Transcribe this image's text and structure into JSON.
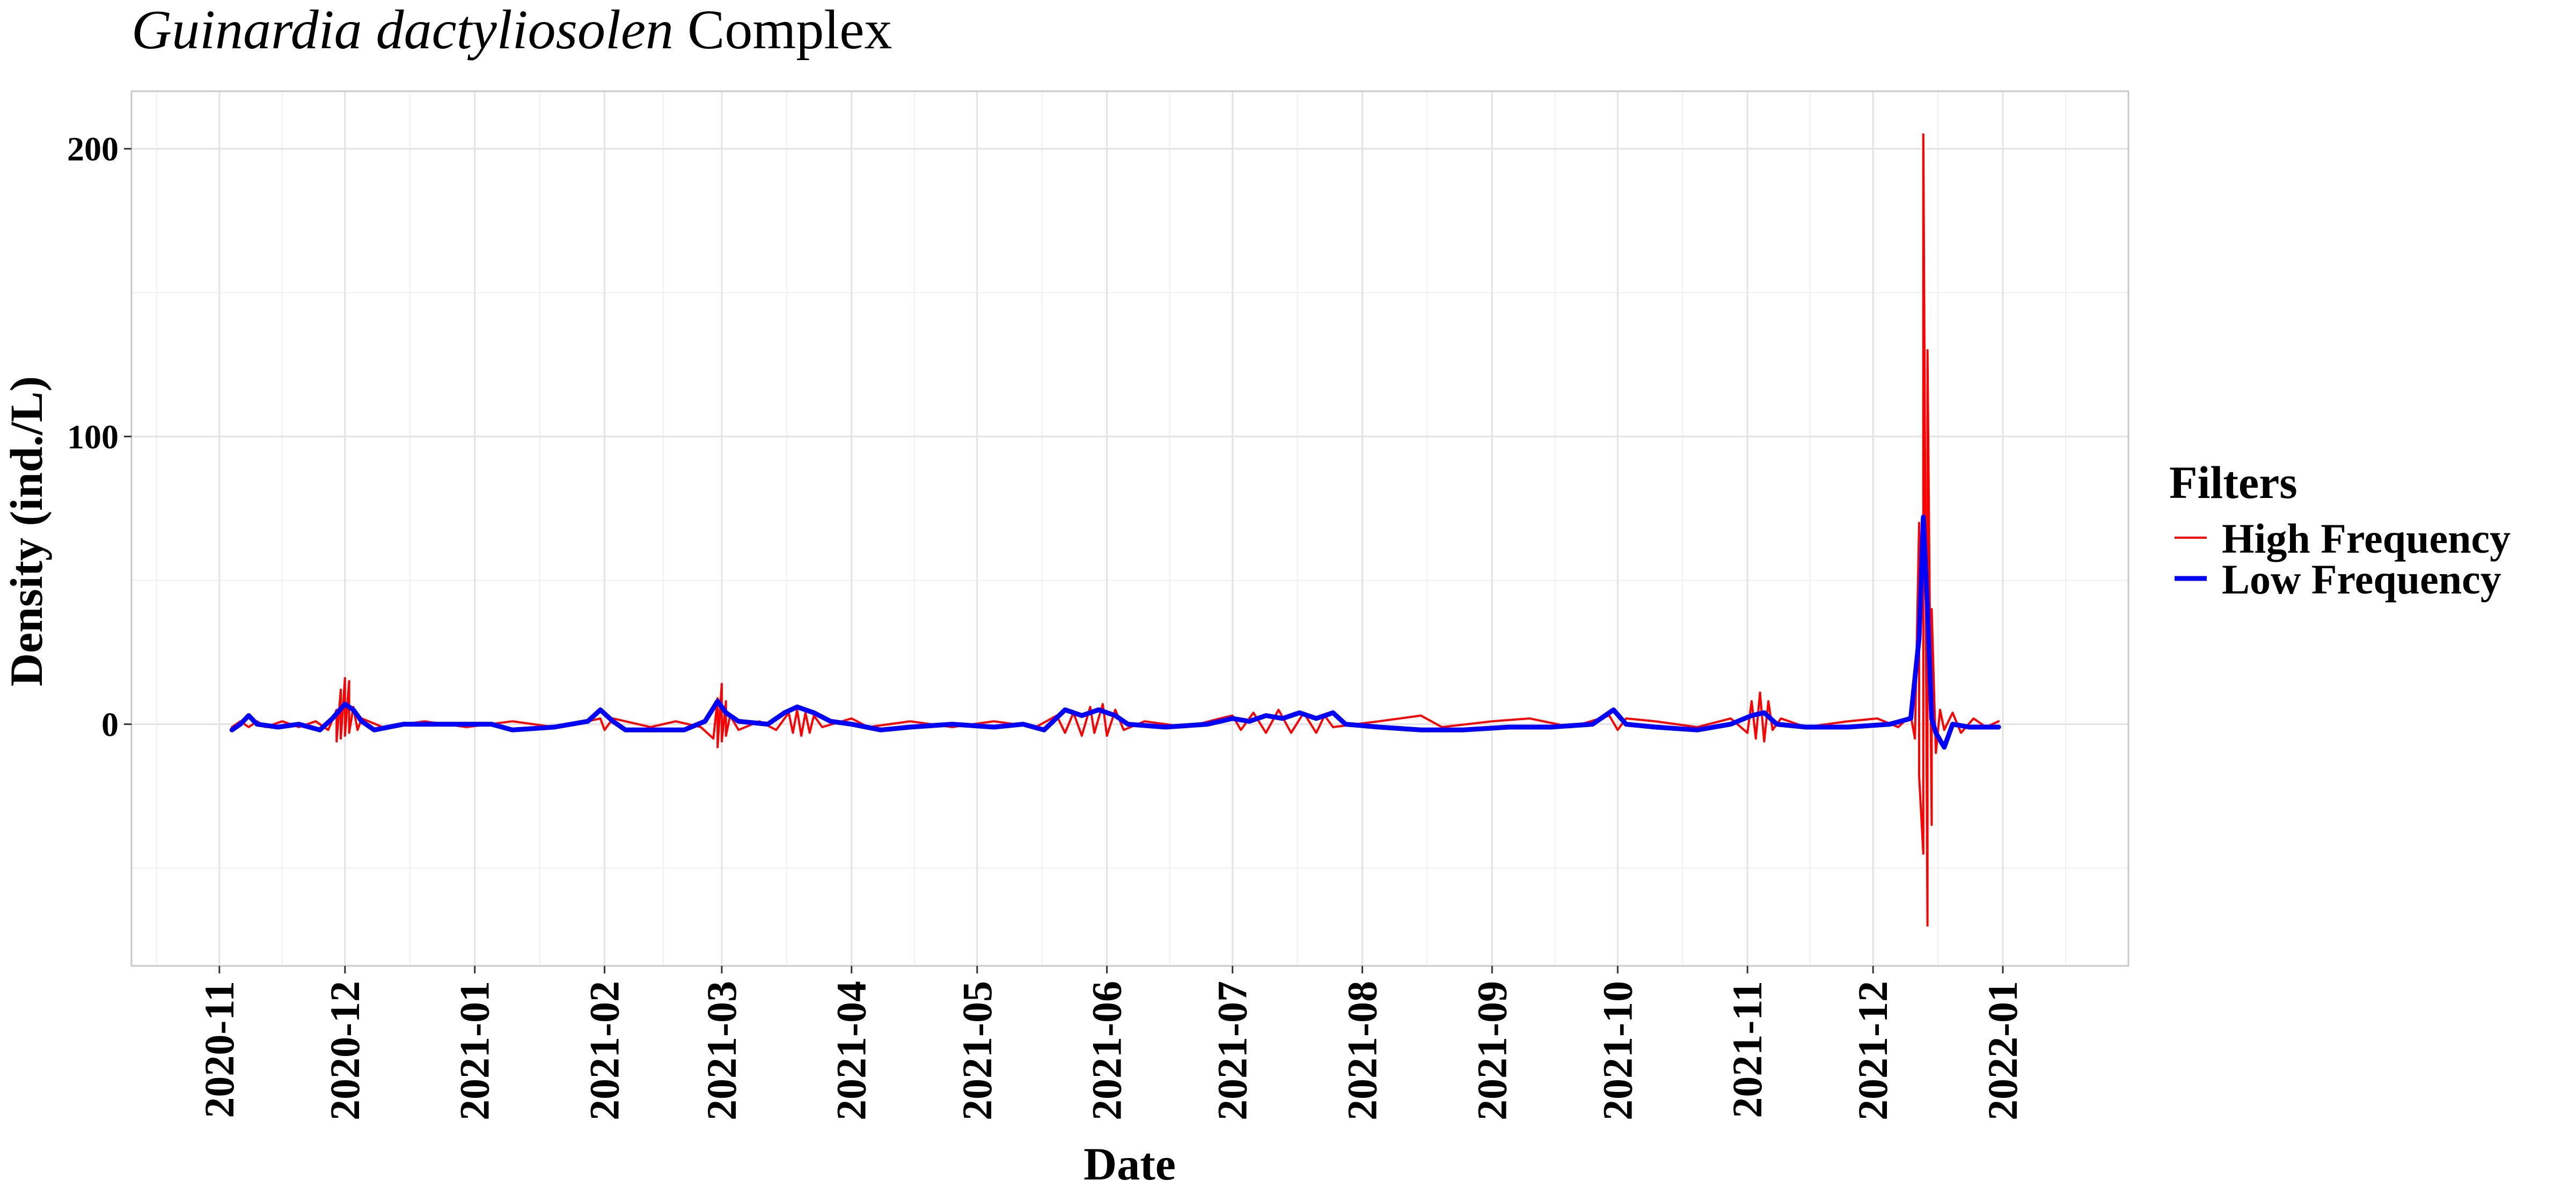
{
  "title": {
    "italic_part": "Guinardia dactyliosolen",
    "regular_part": " Complex"
  },
  "chart_data": {
    "type": "line",
    "title": "Guinardia dactyliosolen Complex",
    "xlabel": "Date",
    "ylabel": "Density (ind./L)",
    "xlim": [
      "2020-10-11",
      "2022-01-31"
    ],
    "ylim": [
      -84,
      220
    ],
    "x_ticks": [
      "2020-11-01",
      "2020-12-01",
      "2021-01-01",
      "2021-02-01",
      "2021-03-01",
      "2021-04-01",
      "2021-05-01",
      "2021-06-01",
      "2021-07-01",
      "2021-08-01",
      "2021-09-01",
      "2021-10-01",
      "2021-11-01",
      "2021-12-01",
      "2022-01-01"
    ],
    "x_tick_labels": [
      "2020-11",
      "2020-12",
      "2021-01",
      "2021-02",
      "2021-03",
      "2021-04",
      "2021-05",
      "2021-06",
      "2021-07",
      "2021-08",
      "2021-09",
      "2021-10",
      "2021-11",
      "2021-12",
      "2022-01"
    ],
    "y_ticks": [
      0,
      100,
      200
    ],
    "y_minor_ticks": [
      -50,
      50,
      150
    ],
    "grid": true,
    "legend": {
      "title": "Filters",
      "placement": "right"
    },
    "series": [
      {
        "name": "High Frequency",
        "color": "#ff0000",
        "values": [
          [
            "2020-11-04",
            -1
          ],
          [
            "2020-11-06",
            1
          ],
          [
            "2020-11-08",
            -1
          ],
          [
            "2020-11-10",
            1
          ],
          [
            "2020-11-12",
            -1
          ],
          [
            "2020-11-16",
            1
          ],
          [
            "2020-11-20",
            -1
          ],
          [
            "2020-11-24",
            1
          ],
          [
            "2020-11-27",
            -2
          ],
          [
            "2020-11-29",
            5
          ],
          [
            "2020-11-29",
            -6
          ],
          [
            "2020-11-30",
            12
          ],
          [
            "2020-11-30",
            -5
          ],
          [
            "2020-12-01",
            16
          ],
          [
            "2020-12-01",
            -4
          ],
          [
            "2020-12-02",
            15
          ],
          [
            "2020-12-02",
            -3
          ],
          [
            "2020-12-03",
            6
          ],
          [
            "2020-12-04",
            -2
          ],
          [
            "2020-12-05",
            2
          ],
          [
            "2020-12-10",
            -1
          ],
          [
            "2020-12-20",
            1
          ],
          [
            "2020-12-30",
            -1
          ],
          [
            "2021-01-10",
            1
          ],
          [
            "2021-01-20",
            -1
          ],
          [
            "2021-01-28",
            1
          ],
          [
            "2021-01-31",
            2
          ],
          [
            "2021-02-01",
            -2
          ],
          [
            "2021-02-03",
            2
          ],
          [
            "2021-02-06",
            1
          ],
          [
            "2021-02-12",
            -1
          ],
          [
            "2021-02-18",
            1
          ],
          [
            "2021-02-24",
            -1
          ],
          [
            "2021-02-27",
            -5
          ],
          [
            "2021-02-28",
            9
          ],
          [
            "2021-02-28",
            -8
          ],
          [
            "2021-03-01",
            14
          ],
          [
            "2021-03-01",
            -6
          ],
          [
            "2021-03-02",
            8
          ],
          [
            "2021-03-02",
            -4
          ],
          [
            "2021-03-03",
            3
          ],
          [
            "2021-03-05",
            -2
          ],
          [
            "2021-03-10",
            1
          ],
          [
            "2021-03-14",
            -2
          ],
          [
            "2021-03-17",
            4
          ],
          [
            "2021-03-18",
            -3
          ],
          [
            "2021-03-19",
            5
          ],
          [
            "2021-03-20",
            -4
          ],
          [
            "2021-03-21",
            4
          ],
          [
            "2021-03-22",
            -3
          ],
          [
            "2021-03-23",
            3
          ],
          [
            "2021-03-25",
            -1
          ],
          [
            "2021-04-01",
            2
          ],
          [
            "2021-04-05",
            -1
          ],
          [
            "2021-04-15",
            1
          ],
          [
            "2021-04-25",
            -1
          ],
          [
            "2021-05-05",
            1
          ],
          [
            "2021-05-15",
            -1
          ],
          [
            "2021-05-20",
            3
          ],
          [
            "2021-05-22",
            -3
          ],
          [
            "2021-05-24",
            4
          ],
          [
            "2021-05-26",
            -4
          ],
          [
            "2021-05-28",
            6
          ],
          [
            "2021-05-29",
            -3
          ],
          [
            "2021-05-31",
            7
          ],
          [
            "2021-06-01",
            -4
          ],
          [
            "2021-06-03",
            5
          ],
          [
            "2021-06-05",
            -2
          ],
          [
            "2021-06-10",
            1
          ],
          [
            "2021-06-20",
            -1
          ],
          [
            "2021-06-28",
            2
          ],
          [
            "2021-07-01",
            3
          ],
          [
            "2021-07-03",
            -2
          ],
          [
            "2021-07-06",
            4
          ],
          [
            "2021-07-09",
            -3
          ],
          [
            "2021-07-12",
            5
          ],
          [
            "2021-07-15",
            -3
          ],
          [
            "2021-07-18",
            4
          ],
          [
            "2021-07-21",
            -3
          ],
          [
            "2021-07-23",
            3
          ],
          [
            "2021-07-25",
            -1
          ],
          [
            "2021-08-05",
            1
          ],
          [
            "2021-08-15",
            3
          ],
          [
            "2021-08-20",
            -1
          ],
          [
            "2021-09-01",
            1
          ],
          [
            "2021-09-10",
            2
          ],
          [
            "2021-09-20",
            -1
          ],
          [
            "2021-09-29",
            3
          ],
          [
            "2021-10-01",
            -2
          ],
          [
            "2021-10-03",
            2
          ],
          [
            "2021-10-10",
            1
          ],
          [
            "2021-10-20",
            -1
          ],
          [
            "2021-10-28",
            2
          ],
          [
            "2021-11-01",
            -3
          ],
          [
            "2021-11-02",
            8
          ],
          [
            "2021-11-03",
            -5
          ],
          [
            "2021-11-04",
            11
          ],
          [
            "2021-11-05",
            -6
          ],
          [
            "2021-11-06",
            8
          ],
          [
            "2021-11-07",
            -2
          ],
          [
            "2021-11-09",
            2
          ],
          [
            "2021-11-15",
            -1
          ],
          [
            "2021-11-25",
            1
          ],
          [
            "2021-12-02",
            2
          ],
          [
            "2021-12-07",
            -1
          ],
          [
            "2021-12-10",
            3
          ],
          [
            "2021-12-11",
            -5
          ],
          [
            "2021-12-12",
            70
          ],
          [
            "2021-12-12",
            -18
          ],
          [
            "2021-12-13",
            -45
          ],
          [
            "2021-12-13",
            205
          ],
          [
            "2021-12-14",
            -70
          ],
          [
            "2021-12-14",
            130
          ],
          [
            "2021-12-15",
            -35
          ],
          [
            "2021-12-15",
            40
          ],
          [
            "2021-12-16",
            -10
          ],
          [
            "2021-12-17",
            5
          ],
          [
            "2021-12-18",
            -2
          ],
          [
            "2021-12-20",
            4
          ],
          [
            "2021-12-22",
            -3
          ],
          [
            "2021-12-25",
            2
          ],
          [
            "2021-12-28",
            -1
          ],
          [
            "2021-12-31",
            1
          ]
        ]
      },
      {
        "name": "Low Frequency",
        "color": "#0000ff",
        "values": [
          [
            "2020-11-04",
            -2
          ],
          [
            "2020-11-06",
            0
          ],
          [
            "2020-11-08",
            3
          ],
          [
            "2020-11-10",
            0
          ],
          [
            "2020-11-15",
            -1
          ],
          [
            "2020-11-20",
            0
          ],
          [
            "2020-11-25",
            -2
          ],
          [
            "2020-11-28",
            2
          ],
          [
            "2020-12-01",
            7
          ],
          [
            "2020-12-03",
            5
          ],
          [
            "2020-12-05",
            1
          ],
          [
            "2020-12-08",
            -2
          ],
          [
            "2020-12-15",
            0
          ],
          [
            "2020-12-25",
            0
          ],
          [
            "2021-01-05",
            0
          ],
          [
            "2021-01-10",
            -2
          ],
          [
            "2021-01-20",
            -1
          ],
          [
            "2021-01-28",
            1
          ],
          [
            "2021-01-31",
            5
          ],
          [
            "2021-02-03",
            1
          ],
          [
            "2021-02-06",
            -2
          ],
          [
            "2021-02-20",
            -2
          ],
          [
            "2021-02-25",
            1
          ],
          [
            "2021-02-28",
            8
          ],
          [
            "2021-03-02",
            4
          ],
          [
            "2021-03-05",
            1
          ],
          [
            "2021-03-12",
            0
          ],
          [
            "2021-03-16",
            4
          ],
          [
            "2021-03-19",
            6
          ],
          [
            "2021-03-23",
            4
          ],
          [
            "2021-03-27",
            1
          ],
          [
            "2021-04-01",
            0
          ],
          [
            "2021-04-08",
            -2
          ],
          [
            "2021-04-15",
            -1
          ],
          [
            "2021-04-25",
            0
          ],
          [
            "2021-05-05",
            -1
          ],
          [
            "2021-05-12",
            0
          ],
          [
            "2021-05-17",
            -2
          ],
          [
            "2021-05-22",
            5
          ],
          [
            "2021-05-26",
            3
          ],
          [
            "2021-05-30",
            5
          ],
          [
            "2021-06-03",
            3
          ],
          [
            "2021-06-06",
            0
          ],
          [
            "2021-06-15",
            -1
          ],
          [
            "2021-06-25",
            0
          ],
          [
            "2021-07-01",
            2
          ],
          [
            "2021-07-05",
            1
          ],
          [
            "2021-07-09",
            3
          ],
          [
            "2021-07-13",
            2
          ],
          [
            "2021-07-17",
            4
          ],
          [
            "2021-07-21",
            2
          ],
          [
            "2021-07-25",
            4
          ],
          [
            "2021-07-28",
            0
          ],
          [
            "2021-08-05",
            -1
          ],
          [
            "2021-08-15",
            -2
          ],
          [
            "2021-08-25",
            -2
          ],
          [
            "2021-09-05",
            -1
          ],
          [
            "2021-09-15",
            -1
          ],
          [
            "2021-09-25",
            0
          ],
          [
            "2021-09-30",
            5
          ],
          [
            "2021-10-03",
            0
          ],
          [
            "2021-10-10",
            -1
          ],
          [
            "2021-10-20",
            -2
          ],
          [
            "2021-10-28",
            0
          ],
          [
            "2021-11-02",
            3
          ],
          [
            "2021-11-05",
            4
          ],
          [
            "2021-11-08",
            0
          ],
          [
            "2021-11-15",
            -1
          ],
          [
            "2021-11-25",
            -1
          ],
          [
            "2021-12-05",
            0
          ],
          [
            "2021-12-10",
            2
          ],
          [
            "2021-12-12",
            30
          ],
          [
            "2021-12-13",
            72
          ],
          [
            "2021-12-14",
            40
          ],
          [
            "2021-12-15",
            2
          ],
          [
            "2021-12-16",
            -3
          ],
          [
            "2021-12-18",
            -8
          ],
          [
            "2021-12-20",
            0
          ],
          [
            "2021-12-24",
            -1
          ],
          [
            "2021-12-28",
            -1
          ],
          [
            "2021-12-31",
            -1
          ]
        ]
      }
    ]
  }
}
